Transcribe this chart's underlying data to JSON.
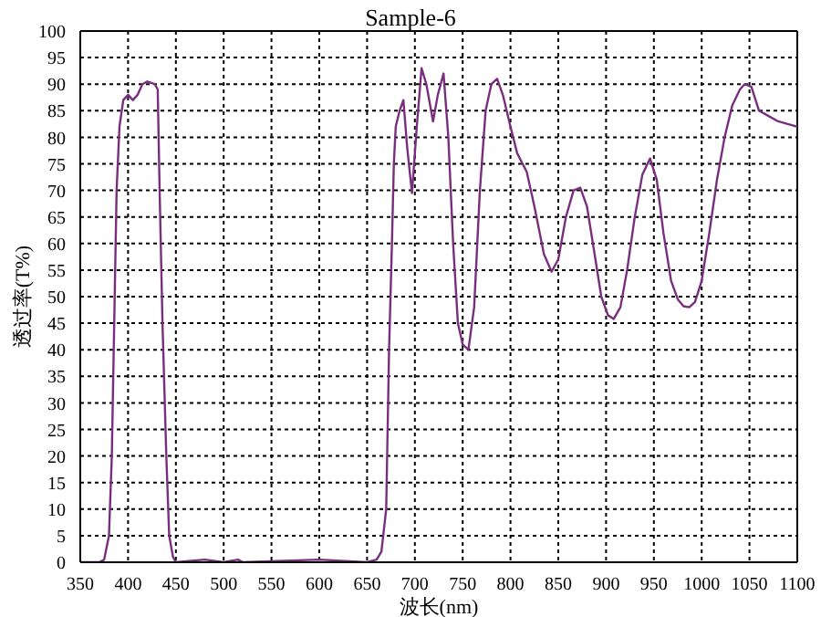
{
  "chart_data": {
    "type": "line",
    "title": "Sample-6",
    "xlabel": "波长(nm)",
    "ylabel": "透过率(T%)",
    "x": [
      350,
      370,
      375,
      380,
      383,
      386,
      388,
      391,
      395,
      400,
      405,
      410,
      415,
      420,
      428,
      431,
      433,
      436,
      440,
      443,
      447,
      450,
      480,
      500,
      515,
      520,
      600,
      650,
      660,
      665,
      670,
      673,
      676,
      678,
      680,
      684,
      688,
      692,
      697,
      702,
      707,
      712,
      719,
      724,
      730,
      735,
      740,
      745,
      750,
      756,
      762,
      768,
      774,
      780,
      786,
      792,
      800,
      807,
      817,
      825,
      835,
      843,
      850,
      858,
      866,
      873,
      880,
      888,
      895,
      902,
      908,
      915,
      922,
      930,
      938,
      946,
      953,
      960,
      968,
      975,
      981,
      987,
      993,
      1000,
      1008,
      1016,
      1024,
      1032,
      1040,
      1045,
      1052,
      1060,
      1070,
      1080,
      1090,
      1100
    ],
    "series": [
      {
        "color": "#7a2f7e",
        "values": [
          0,
          0,
          0.5,
          5,
          20,
          50,
          70,
          82,
          87,
          88,
          87,
          88,
          90,
          90.5,
          90,
          89,
          70,
          45,
          20,
          5,
          1,
          0,
          0.5,
          0,
          0.5,
          0,
          0.5,
          0,
          0.5,
          2,
          10,
          40,
          60,
          75,
          82,
          85,
          87,
          78,
          69.5,
          82,
          93,
          90,
          83,
          88,
          92,
          80,
          60,
          45,
          41,
          40,
          48,
          70,
          85,
          90,
          91,
          88,
          82,
          77,
          73.5,
          67,
          58,
          54.7,
          57,
          65,
          70,
          70.5,
          67,
          58,
          50,
          46.5,
          45.8,
          48,
          55,
          65,
          73,
          76,
          72,
          62,
          53,
          49.5,
          48.2,
          48,
          49,
          53,
          62,
          72,
          80,
          86,
          89,
          90,
          89.5,
          85,
          84,
          83,
          82.5,
          82
        ]
      }
    ],
    "xlim": [
      350,
      1100
    ],
    "xticks": [
      350,
      400,
      450,
      500,
      550,
      600,
      650,
      700,
      750,
      800,
      850,
      900,
      950,
      1000,
      1050,
      1100
    ],
    "ylim": [
      0,
      100
    ],
    "yticks": [
      0,
      5,
      10,
      15,
      20,
      25,
      30,
      35,
      40,
      45,
      50,
      55,
      60,
      65,
      70,
      75,
      80,
      85,
      90,
      95,
      100
    ],
    "grid": true,
    "marker": "none",
    "line_style": "solid",
    "legend": false
  }
}
